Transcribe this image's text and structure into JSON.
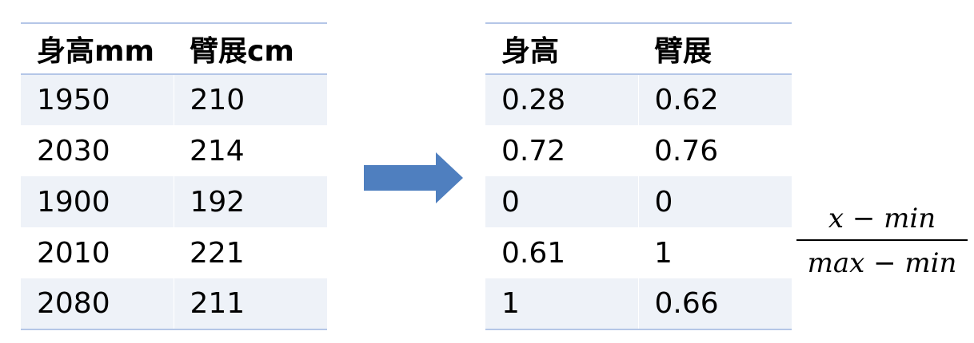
{
  "left_table": {
    "headers": [
      "身高mm",
      "臂展cm"
    ],
    "rows": [
      [
        "1950",
        "210"
      ],
      [
        "2030",
        "214"
      ],
      [
        "1900",
        "192"
      ],
      [
        "2010",
        "221"
      ],
      [
        "2080",
        "211"
      ]
    ]
  },
  "right_table": {
    "headers": [
      "身高",
      "臂展"
    ],
    "rows": [
      [
        "0.28",
        "0.62"
      ],
      [
        "0.72",
        "0.76"
      ],
      [
        "0",
        "0"
      ],
      [
        "0.61",
        "1"
      ],
      [
        "1",
        "0.66"
      ]
    ]
  },
  "arrow": {
    "icon": "right-arrow-icon",
    "color": "#4f7fbf"
  },
  "formula": {
    "numerator": "x − min",
    "denominator": "max − min"
  },
  "colors": {
    "header_rule": "#b4c6e7",
    "band_fill": "#eef2f8"
  }
}
